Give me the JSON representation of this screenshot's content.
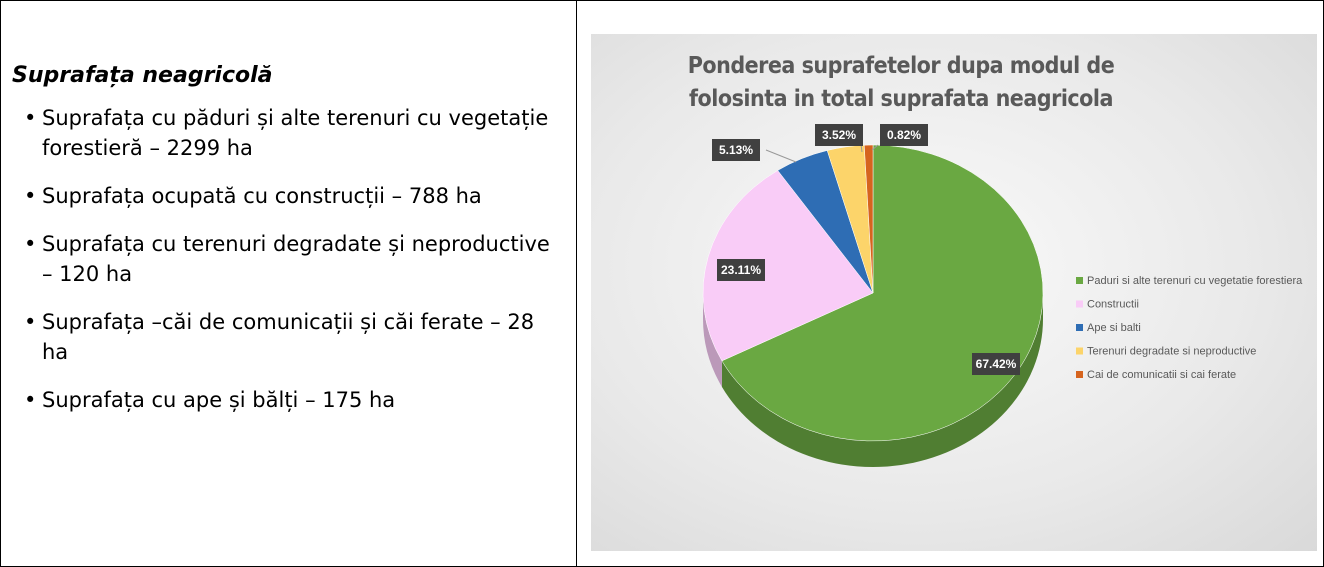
{
  "text": {
    "heading": "Suprafața neagricolă",
    "items": [
      "Suprafața cu păduri și alte terenuri cu vegetație forestieră – 2299 ha",
      "Suprafața ocupată cu construcții – 788 ha",
      "Suprafața cu terenuri degradate și neproductive – 120 ha",
      "Suprafața –căi de comunicații și căi ferate – 28 ha",
      "Suprafața cu ape și bălți – 175 ha"
    ]
  },
  "chart_data": {
    "type": "pie",
    "title": "Ponderea suprafetelor dupa modul de folosinta in total suprafata neagricola",
    "categories": [
      "Paduri si alte terenuri cu vegetatie forestiera",
      "Constructii",
      "Ape si balti",
      "Terenuri degradate si neproductive",
      "Cai de comunicatii si cai ferate"
    ],
    "values": [
      67.42,
      23.11,
      5.13,
      3.52,
      0.82
    ],
    "value_labels": [
      "67.42%",
      "23.11%",
      "5.13%",
      "3.52%",
      "0.82%"
    ],
    "colors": [
      "#6aa842",
      "#f9ccf7",
      "#2e6db4",
      "#fcd46a",
      "#d6641e"
    ],
    "legend": "right"
  }
}
